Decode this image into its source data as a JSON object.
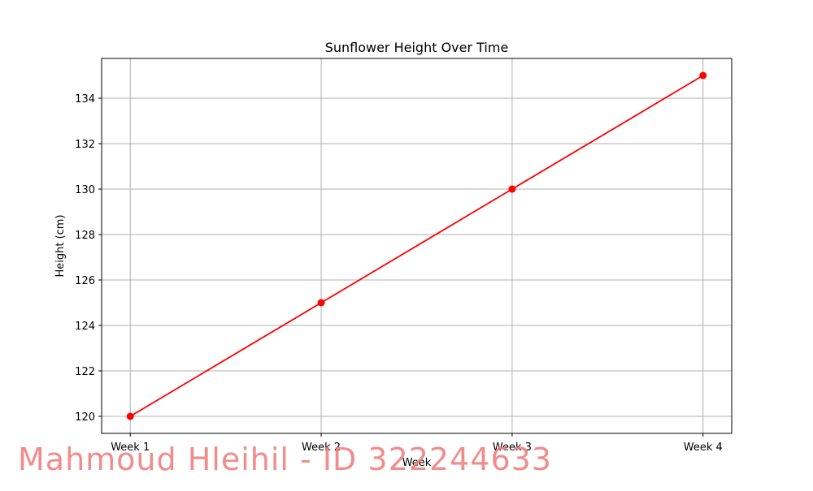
{
  "chart_data": {
    "type": "line",
    "title": "Sunflower Height Over Time",
    "xlabel": "Week",
    "ylabel": "Height (cm)",
    "categories": [
      "Week 1",
      "Week 2",
      "Week 3",
      "Week 4"
    ],
    "series": [
      {
        "values": [
          120,
          125,
          130,
          135
        ],
        "color": "#ff0000",
        "marker": "circle"
      }
    ],
    "yticks": [
      120,
      122,
      124,
      126,
      128,
      130,
      132,
      134
    ],
    "ylim": [
      119.25,
      135.75
    ],
    "grid": true
  },
  "watermark": {
    "text": "Mahmoud Hleihil - ID 322244633",
    "color": "#f08080"
  }
}
